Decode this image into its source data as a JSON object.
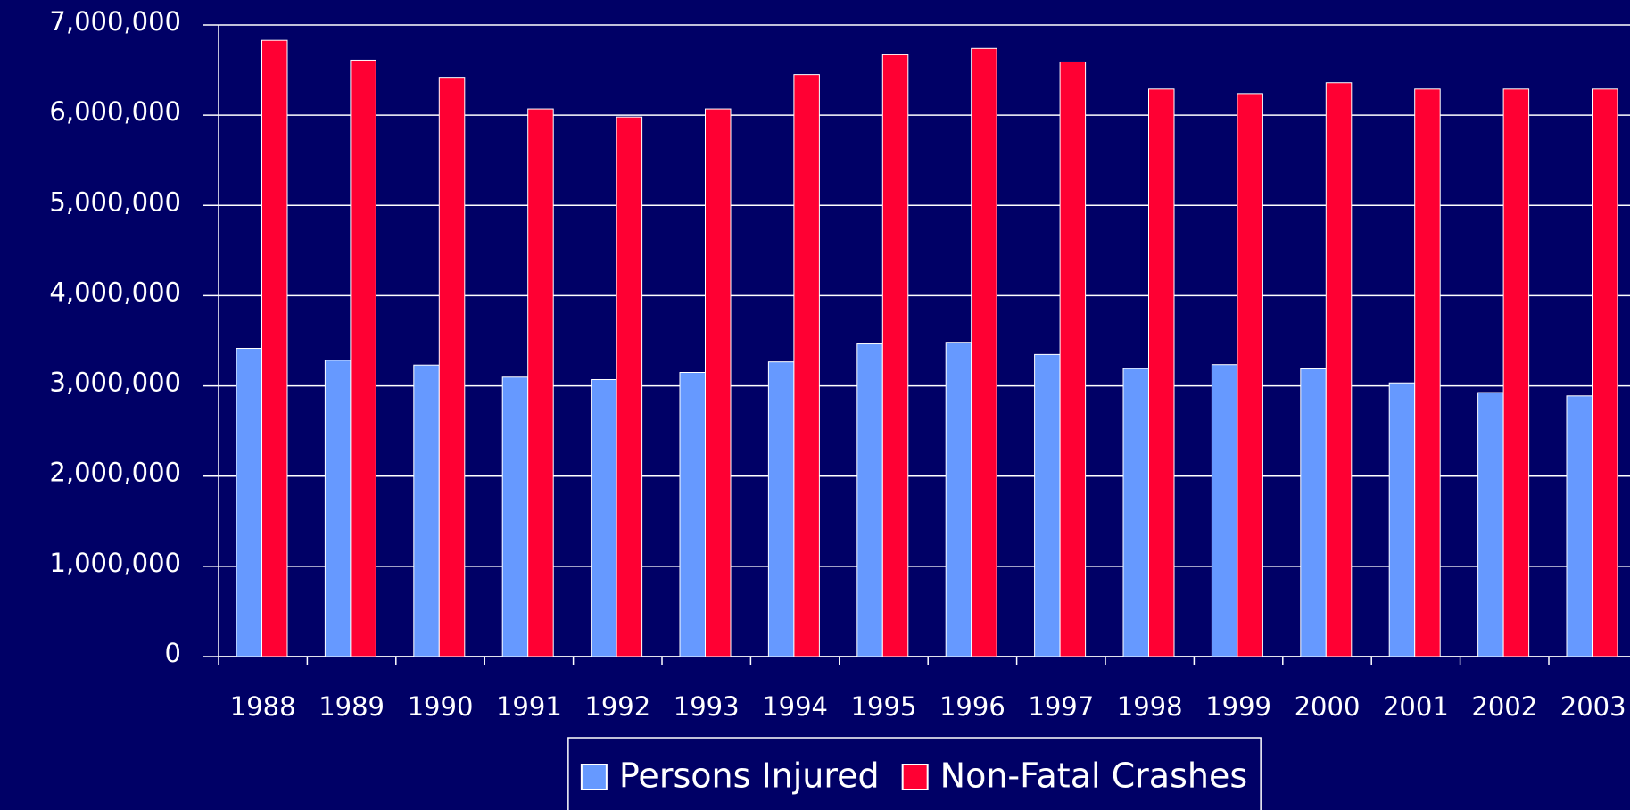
{
  "chart_data": {
    "type": "bar",
    "categories": [
      "1988",
      "1989",
      "1990",
      "1991",
      "1992",
      "1993",
      "1994",
      "1995",
      "1996",
      "1997",
      "1998",
      "1999",
      "2000",
      "2001",
      "2002",
      "2003"
    ],
    "series": [
      {
        "name": "Persons Injured",
        "color": "#6699ff",
        "values": [
          3416000,
          3284000,
          3231000,
          3097000,
          3070000,
          3149000,
          3266000,
          3465000,
          3483000,
          3348000,
          3192000,
          3236000,
          3189000,
          3033000,
          2926000,
          2889000
        ]
      },
      {
        "name": "Non-Fatal Crashes",
        "color": "#ff0033",
        "values": [
          6830000,
          6610000,
          6420000,
          6070000,
          5980000,
          6070000,
          6450000,
          6670000,
          6740000,
          6590000,
          6290000,
          6240000,
          6360000,
          6290000,
          6290000,
          6290000
        ]
      }
    ],
    "ylim": [
      0,
      7000000
    ],
    "yticks": [
      0,
      {
        "value": 1000000,
        "label": "1,000,000"
      },
      {
        "value": 2000000,
        "label": "2,000,000"
      },
      {
        "value": 3000000,
        "label": "3,000,000"
      },
      {
        "value": 4000000,
        "label": "4,000,000"
      },
      {
        "value": 5000000,
        "label": "5,000,000"
      },
      {
        "value": 6000000,
        "label": "6,000,000"
      },
      {
        "value": 7000000,
        "label": "7,000,000"
      }
    ],
    "grid": true,
    "legend": "bottom"
  }
}
